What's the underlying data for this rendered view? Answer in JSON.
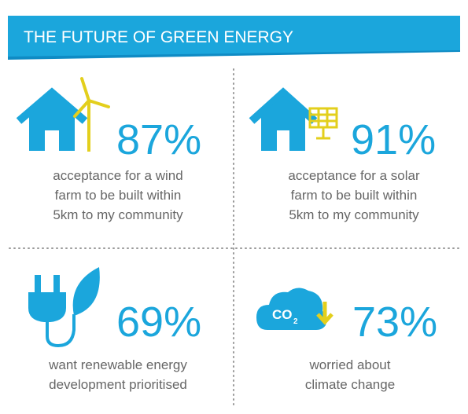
{
  "header": {
    "title": "THE FUTURE OF GREEN ENERGY"
  },
  "cells": [
    {
      "value": "87%",
      "lines": [
        "acceptance for a wind",
        "farm to be built within",
        "5km to my community"
      ]
    },
    {
      "value": "91%",
      "lines": [
        "acceptance for a solar",
        "farm to be built within",
        "5km to my community"
      ]
    },
    {
      "value": "69%",
      "lines": [
        "want renewable energy",
        "development prioritised"
      ]
    },
    {
      "value": "73%",
      "lines": [
        "worried about",
        "climate change"
      ]
    }
  ],
  "icon_text": {
    "co2": "CO",
    "sub": "2"
  }
}
